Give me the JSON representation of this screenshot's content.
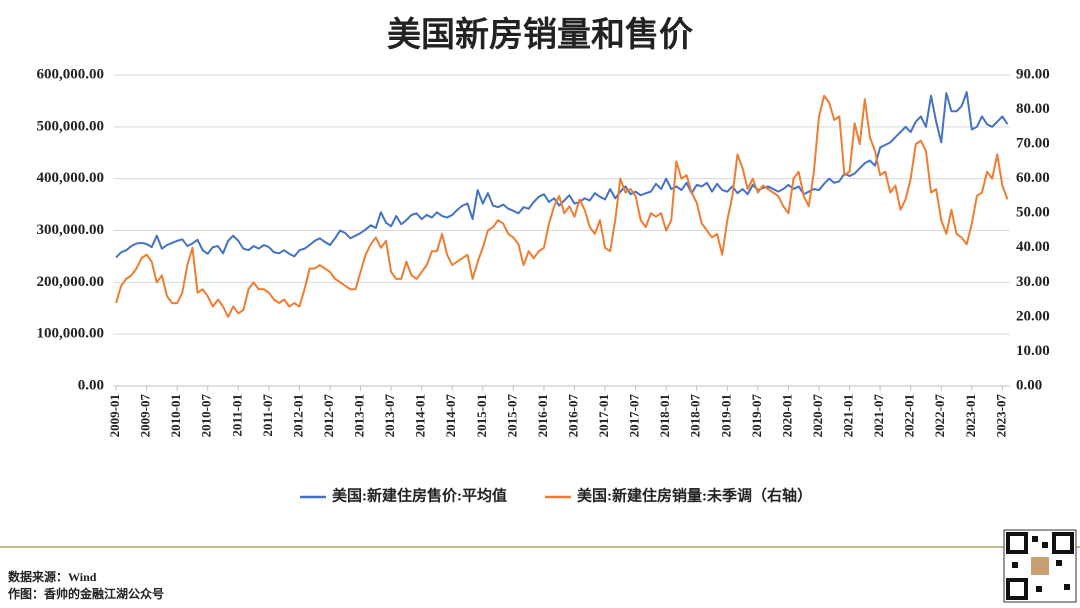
{
  "chart_data": {
    "type": "line",
    "title": "美国新房销量和售价",
    "categories": [
      "2009-01",
      null,
      null,
      null,
      null,
      null,
      "2009-07",
      null,
      null,
      null,
      null,
      null,
      "2010-01",
      null,
      null,
      null,
      null,
      null,
      "2010-07",
      null,
      null,
      null,
      null,
      null,
      "2011-01",
      null,
      null,
      null,
      null,
      null,
      "2011-07",
      null,
      null,
      null,
      null,
      null,
      "2012-01",
      null,
      null,
      null,
      null,
      null,
      "2012-07",
      null,
      null,
      null,
      null,
      null,
      "2013-01",
      null,
      null,
      null,
      null,
      null,
      "2013-07",
      null,
      null,
      null,
      null,
      null,
      "2014-01",
      null,
      null,
      null,
      null,
      null,
      "2014-07",
      null,
      null,
      null,
      null,
      null,
      "2015-01",
      null,
      null,
      null,
      null,
      null,
      "2015-07",
      null,
      null,
      null,
      null,
      null,
      "2016-01",
      null,
      null,
      null,
      null,
      null,
      "2016-07",
      null,
      null,
      null,
      null,
      null,
      "2017-01",
      null,
      null,
      null,
      null,
      null,
      "2017-07",
      null,
      null,
      null,
      null,
      null,
      "2018-01",
      null,
      null,
      null,
      null,
      null,
      "2018-07",
      null,
      null,
      null,
      null,
      null,
      "2019-01",
      null,
      null,
      null,
      null,
      null,
      "2019-07",
      null,
      null,
      null,
      null,
      null,
      "2020-01",
      null,
      null,
      null,
      null,
      null,
      "2020-07",
      null,
      null,
      null,
      null,
      null,
      "2021-01",
      null,
      null,
      null,
      null,
      null,
      "2021-07",
      null,
      null,
      null,
      null,
      null,
      "2022-01",
      null,
      null,
      null,
      null,
      null,
      "2022-07",
      null,
      null,
      null,
      null,
      null,
      "2023-01",
      null,
      null,
      null,
      null,
      null,
      "2023-07",
      null
    ],
    "series": [
      {
        "name": "美国:新建住房售价:平均值",
        "color": "#4472c4",
        "values": [
          248000,
          258000,
          262000,
          270000,
          275000,
          276000,
          274000,
          268000,
          290000,
          265000,
          272000,
          276000,
          280000,
          283000,
          270000,
          275000,
          282000,
          262000,
          255000,
          268000,
          270000,
          256000,
          280000,
          290000,
          280000,
          265000,
          262000,
          270000,
          265000,
          272000,
          268000,
          258000,
          256000,
          262000,
          255000,
          250000,
          262000,
          265000,
          272000,
          280000,
          285000,
          278000,
          272000,
          285000,
          300000,
          295000,
          285000,
          290000,
          295000,
          302000,
          310000,
          305000,
          335000,
          315000,
          308000,
          328000,
          312000,
          320000,
          330000,
          333000,
          322000,
          330000,
          325000,
          335000,
          328000,
          325000,
          330000,
          340000,
          348000,
          352000,
          322000,
          378000,
          352000,
          372000,
          348000,
          345000,
          350000,
          342000,
          338000,
          333000,
          345000,
          342000,
          355000,
          365000,
          370000,
          355000,
          362000,
          348000,
          358000,
          368000,
          352000,
          355000,
          362000,
          358000,
          372000,
          365000,
          360000,
          380000,
          362000,
          375000,
          385000,
          370000,
          375000,
          368000,
          372000,
          375000,
          390000,
          380000,
          400000,
          380000,
          385000,
          378000,
          392000,
          372000,
          388000,
          385000,
          392000,
          375000,
          390000,
          378000,
          375000,
          385000,
          372000,
          380000,
          370000,
          388000,
          378000,
          382000,
          385000,
          380000,
          375000,
          380000,
          388000,
          380000,
          385000,
          370000,
          375000,
          380000,
          378000,
          390000,
          400000,
          392000,
          395000,
          410000,
          405000,
          410000,
          420000,
          430000,
          435000,
          425000,
          460000,
          465000,
          470000,
          480000,
          490000,
          500000,
          490000,
          510000,
          520000,
          500000,
          560000,
          510000,
          470000,
          565000,
          530000,
          530000,
          540000,
          567000,
          495000,
          500000,
          520000,
          505000,
          500000,
          510000,
          520000,
          505000
        ]
      },
      {
        "name": "美国:新建住房销量:未季调（右轴）",
        "color": "#ed7d31",
        "axis": "y2",
        "values": [
          24,
          29,
          31,
          32,
          34,
          37,
          38,
          36,
          30,
          32,
          26,
          24,
          24,
          27,
          35,
          40,
          27,
          28,
          26,
          23,
          25,
          23,
          20,
          23,
          21,
          22,
          28,
          30,
          28,
          28,
          27,
          25,
          24,
          25,
          23,
          24,
          23,
          28,
          34,
          34,
          35,
          34,
          33,
          31,
          30,
          29,
          28,
          28,
          33,
          38,
          41,
          43,
          40,
          42,
          33,
          31,
          31,
          36,
          32,
          31,
          33,
          35,
          39,
          39,
          44,
          38,
          35,
          36,
          37,
          38,
          31,
          36,
          40,
          45,
          46,
          48,
          47,
          44,
          43,
          41,
          35,
          39,
          37,
          39,
          40,
          47,
          52,
          55,
          50,
          52,
          49,
          54,
          51,
          46,
          44,
          48,
          40,
          39,
          48,
          60,
          56,
          57,
          55,
          48,
          46,
          50,
          49,
          50,
          45,
          48,
          65,
          60,
          61,
          56,
          53,
          47,
          45,
          43,
          44,
          38,
          48,
          55,
          67,
          63,
          57,
          60,
          56,
          58,
          57,
          56,
          55,
          52,
          50,
          60,
          62,
          55,
          52,
          62,
          78,
          84,
          82,
          77,
          78,
          61,
          62,
          76,
          70,
          83,
          72,
          68,
          61,
          62,
          56,
          58,
          51,
          54,
          60,
          70,
          71,
          68,
          56,
          57,
          48,
          44,
          51,
          44,
          43,
          41,
          47,
          55,
          56,
          62,
          60,
          67,
          58,
          54
        ]
      }
    ],
    "ylim": [
      0,
      600000
    ],
    "yticks": [
      {
        "value": 0,
        "label": "0.00"
      },
      {
        "value": 100000,
        "label": "100,000.00"
      },
      {
        "value": 200000,
        "label": "200,000.00"
      },
      {
        "value": 300000,
        "label": "300,000.00"
      },
      {
        "value": 400000,
        "label": "400,000.00"
      },
      {
        "value": 500000,
        "label": "500,000.00"
      },
      {
        "value": 600000,
        "label": "600,000.00"
      }
    ],
    "y2lim": [
      0,
      90
    ],
    "y2ticks": [
      {
        "value": 0,
        "label": "0.00"
      },
      {
        "value": 10,
        "label": "10.00"
      },
      {
        "value": 20,
        "label": "20.00"
      },
      {
        "value": 30,
        "label": "30.00"
      },
      {
        "value": 40,
        "label": "40.00"
      },
      {
        "value": 50,
        "label": "50.00"
      },
      {
        "value": 60,
        "label": "60.00"
      },
      {
        "value": 70,
        "label": "70.00"
      },
      {
        "value": 80,
        "label": "80.00"
      },
      {
        "value": 90,
        "label": "90.00"
      }
    ],
    "grid": true,
    "legend": "bottom"
  },
  "footer": {
    "source": "数据来源：Wind",
    "author": "作图：香帅的金融江湖公众号"
  }
}
